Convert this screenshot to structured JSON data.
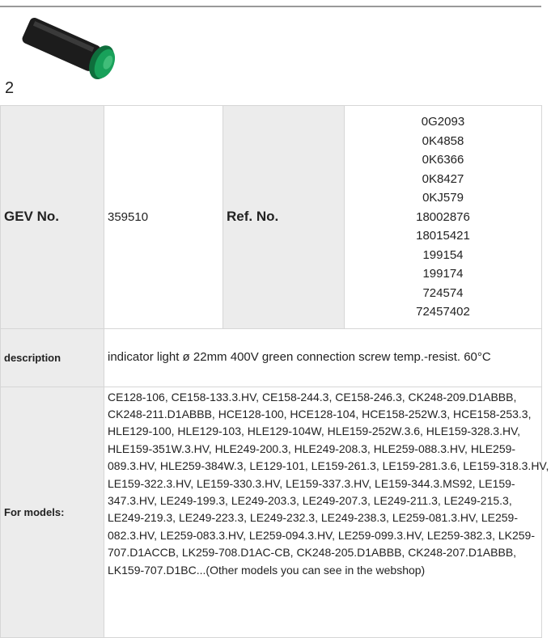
{
  "header": {
    "image_label": "2"
  },
  "table": {
    "gev_label": "GEV No.",
    "gev_value": "359510",
    "ref_label": "Ref. No.",
    "ref_values": [
      "0G2093",
      "0K4858",
      "0K6366",
      "0K8427",
      "0KJ579",
      "18002876",
      "18015421",
      "199154",
      "199174",
      "724574",
      "72457402"
    ],
    "description_label": "description",
    "description_value": "indicator light  ø 22mm 400V green connection screw temp.-resist. 60°C",
    "models_label": "For models:",
    "models_value": "CE128-106, CE158-133.3.HV, CE158-244.3, CE158-246.3, CK248-209.D1ABBB, CK248-211.D1ABBB, HCE128-100, HCE128-104, HCE158-252W.3, HCE158-253.3, HLE129-100, HLE129-103, HLE129-104W, HLE159-252W.3.6, HLE159-328.3.HV, HLE159-351W.3.HV, HLE249-200.3, HLE249-208.3, HLE259-088.3.HV, HLE259-089.3.HV, HLE259-384W.3, LE129-101, LE159-261.3, LE159-281.3.6, LE159-318.3.HV, LE159-322.3.HV, LE159-330.3.HV, LE159-337.3.HV, LE159-344.3.MS92, LE159-347.3.HV, LE249-199.3, LE249-203.3, LE249-207.3, LE249-211.3, LE249-215.3, LE249-219.3, LE249-223.3, LE249-232.3, LE249-238.3, LE259-081.3.HV, LE259-082.3.HV, LE259-083.3.HV, LE259-094.3.HV, LE259-099.3.HV, LE259-382.3, LK259-707.D1ACCB, LK259-708.D1AC-CB, CK248-205.D1ABBB, CK248-207.D1ABBB, LK159-707.D1BC...(Other models you can see in the webshop)"
  }
}
